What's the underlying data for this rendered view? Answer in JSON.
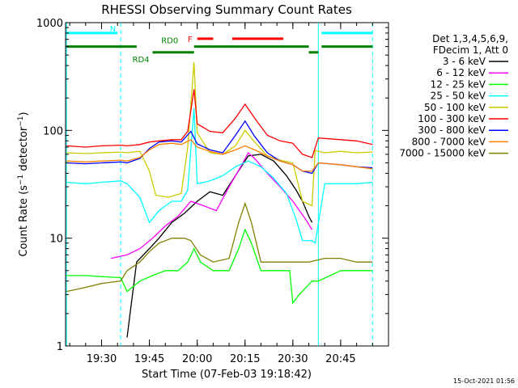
{
  "chart_data": {
    "type": "line",
    "title": "RHESSI Observing Summary Count Rates",
    "xlabel": "Start Time (07-Feb-03 19:18:42)",
    "ylabel": "Count Rate (s⁻¹ detector⁻¹)",
    "ylabel_main": "Count Rate (s",
    "ylabel_sup1": "−1",
    "ylabel_mid": " detector",
    "ylabel_sup2": "−1",
    "ylabel_end": ")",
    "y_scale": "log",
    "ylim": [
      1,
      1000
    ],
    "xlim": [
      "19:18:42",
      "21:00:00"
    ],
    "x_ticks": [
      "19:30",
      "19:45",
      "20:00",
      "20:15",
      "20:30",
      "20:45"
    ],
    "y_ticks": [
      "1",
      "10",
      "100",
      "1000"
    ],
    "legend_header": [
      "Det 1,3,4,5,6,9,",
      "FDecim 1, Att 0"
    ],
    "legend_placement": "right",
    "timestamp": "15-Oct-2021 01:56",
    "series": [
      {
        "name": "3 - 6 keV",
        "color": "#000000",
        "points": [
          [
            "19:38",
            1.2
          ],
          [
            "19:41",
            6
          ],
          [
            "19:45",
            8
          ],
          [
            "19:48",
            10
          ],
          [
            "19:52",
            14
          ],
          [
            "19:56",
            17
          ],
          [
            "20:00",
            22
          ],
          [
            "20:04",
            27
          ],
          [
            "20:08",
            25
          ],
          [
            "20:12",
            38
          ],
          [
            "20:16",
            58
          ],
          [
            "20:20",
            60
          ],
          [
            "20:24",
            52
          ],
          [
            "20:28",
            38
          ],
          [
            "20:31",
            28
          ],
          [
            "20:33",
            22
          ],
          [
            "20:35",
            16
          ],
          [
            "20:36",
            14
          ]
        ]
      },
      {
        "name": "6 - 12 keV",
        "color": "#ff00ff",
        "points": [
          [
            "19:33",
            6.5
          ],
          [
            "19:38",
            7
          ],
          [
            "19:42",
            8
          ],
          [
            "19:46",
            10
          ],
          [
            "19:50",
            13
          ],
          [
            "19:54",
            16
          ],
          [
            "19:58",
            22
          ],
          [
            "20:02",
            20
          ],
          [
            "20:06",
            18
          ],
          [
            "20:10",
            30
          ],
          [
            "20:14",
            48
          ],
          [
            "20:16",
            62
          ],
          [
            "20:18",
            55
          ],
          [
            "20:22",
            40
          ],
          [
            "20:26",
            30
          ],
          [
            "20:30",
            22
          ],
          [
            "20:34",
            15
          ],
          [
            "20:36",
            12
          ]
        ]
      },
      {
        "name": "12 - 25 keV",
        "color": "#00ff00",
        "points": [
          [
            "19:19",
            4.5
          ],
          [
            "19:25",
            4.5
          ],
          [
            "19:30",
            4.4
          ],
          [
            "19:36",
            4.3
          ],
          [
            "19:38",
            3.2
          ],
          [
            "19:42",
            4
          ],
          [
            "19:46",
            4.5
          ],
          [
            "19:50",
            5
          ],
          [
            "19:54",
            5
          ],
          [
            "19:57",
            6
          ],
          [
            "19:59",
            8
          ],
          [
            "20:01",
            6
          ],
          [
            "20:05",
            5
          ],
          [
            "20:10",
            5
          ],
          [
            "20:13",
            8
          ],
          [
            "20:15",
            12
          ],
          [
            "20:17",
            9
          ],
          [
            "20:20",
            5
          ],
          [
            "20:25",
            5
          ],
          [
            "20:29",
            5
          ],
          [
            "20:30",
            2.5
          ],
          [
            "20:32",
            3
          ],
          [
            "20:36",
            4
          ],
          [
            "20:38",
            4
          ],
          [
            "20:45",
            5
          ],
          [
            "20:50",
            5
          ],
          [
            "20:55",
            5
          ]
        ]
      },
      {
        "name": "25 - 50 keV",
        "color": "#00ffff",
        "points": [
          [
            "19:19",
            33
          ],
          [
            "19:25",
            32
          ],
          [
            "19:30",
            33
          ],
          [
            "19:36",
            34
          ],
          [
            "19:38",
            32
          ],
          [
            "19:42",
            24
          ],
          [
            "19:45",
            14
          ],
          [
            "19:48",
            18
          ],
          [
            "19:52",
            22
          ],
          [
            "19:55",
            22
          ],
          [
            "19:57",
            28
          ],
          [
            "19:59",
            160
          ],
          [
            "20:00",
            32
          ],
          [
            "20:04",
            34
          ],
          [
            "20:08",
            38
          ],
          [
            "20:12",
            46
          ],
          [
            "20:16",
            52
          ],
          [
            "20:20",
            46
          ],
          [
            "20:24",
            36
          ],
          [
            "20:28",
            26
          ],
          [
            "20:31",
            15
          ],
          [
            "20:33",
            9.5
          ],
          [
            "20:36",
            9.5
          ],
          [
            "20:37",
            9
          ],
          [
            "20:40",
            32
          ],
          [
            "20:45",
            32
          ],
          [
            "20:50",
            32
          ],
          [
            "20:55",
            33
          ]
        ]
      },
      {
        "name": "50 - 100 keV",
        "color": "#cccc00",
        "points": [
          [
            "19:19",
            62
          ],
          [
            "19:25",
            61
          ],
          [
            "19:30",
            62
          ],
          [
            "19:36",
            63
          ],
          [
            "19:38",
            62
          ],
          [
            "19:42",
            64
          ],
          [
            "19:45",
            42
          ],
          [
            "19:47",
            25
          ],
          [
            "19:51",
            24
          ],
          [
            "19:55",
            26
          ],
          [
            "19:57",
            70
          ],
          [
            "19:59",
            430
          ],
          [
            "20:00",
            95
          ],
          [
            "20:04",
            62
          ],
          [
            "20:08",
            60
          ],
          [
            "20:12",
            72
          ],
          [
            "20:15",
            100
          ],
          [
            "20:18",
            78
          ],
          [
            "20:22",
            58
          ],
          [
            "20:26",
            53
          ],
          [
            "20:30",
            50
          ],
          [
            "20:33",
            22
          ],
          [
            "20:36",
            20
          ],
          [
            "20:37",
            65
          ],
          [
            "20:40",
            62
          ],
          [
            "20:45",
            64
          ],
          [
            "20:50",
            62
          ],
          [
            "20:55",
            63
          ]
        ]
      },
      {
        "name": "100 - 300 keV",
        "color": "#ff0000",
        "points": [
          [
            "19:19",
            72
          ],
          [
            "19:25",
            70
          ],
          [
            "19:30",
            72
          ],
          [
            "19:36",
            73
          ],
          [
            "19:38",
            72
          ],
          [
            "19:42",
            74
          ],
          [
            "19:45",
            78
          ],
          [
            "19:48",
            80
          ],
          [
            "19:52",
            82
          ],
          [
            "19:55",
            82
          ],
          [
            "19:57",
            98
          ],
          [
            "19:59",
            240
          ],
          [
            "20:00",
            115
          ],
          [
            "20:04",
            98
          ],
          [
            "20:08",
            95
          ],
          [
            "20:12",
            130
          ],
          [
            "20:15",
            175
          ],
          [
            "20:18",
            130
          ],
          [
            "20:22",
            90
          ],
          [
            "20:26",
            80
          ],
          [
            "20:30",
            76
          ],
          [
            "20:33",
            60
          ],
          [
            "20:36",
            56
          ],
          [
            "20:38",
            85
          ],
          [
            "20:45",
            82
          ],
          [
            "20:50",
            80
          ],
          [
            "20:55",
            74
          ]
        ]
      },
      {
        "name": "300 - 800 keV",
        "color": "#0000ff",
        "points": [
          [
            "19:19",
            50
          ],
          [
            "19:25",
            49
          ],
          [
            "19:30",
            50
          ],
          [
            "19:36",
            51
          ],
          [
            "19:38",
            50
          ],
          [
            "19:42",
            55
          ],
          [
            "19:45",
            68
          ],
          [
            "19:48",
            78
          ],
          [
            "19:52",
            80
          ],
          [
            "19:55",
            78
          ],
          [
            "19:58",
            98
          ],
          [
            "20:00",
            75
          ],
          [
            "20:04",
            66
          ],
          [
            "20:08",
            62
          ],
          [
            "20:12",
            90
          ],
          [
            "20:15",
            122
          ],
          [
            "20:18",
            88
          ],
          [
            "20:22",
            62
          ],
          [
            "20:26",
            52
          ],
          [
            "20:30",
            48
          ],
          [
            "20:33",
            42
          ],
          [
            "20:36",
            40
          ],
          [
            "20:38",
            50
          ],
          [
            "20:45",
            48
          ],
          [
            "20:50",
            46
          ],
          [
            "20:55",
            45
          ]
        ]
      },
      {
        "name": "800 - 7000 keV",
        "color": "#ff8000",
        "points": [
          [
            "19:19",
            52
          ],
          [
            "19:25",
            51
          ],
          [
            "19:30",
            52
          ],
          [
            "19:36",
            53
          ],
          [
            "19:38",
            52
          ],
          [
            "19:42",
            56
          ],
          [
            "19:45",
            66
          ],
          [
            "19:48",
            74
          ],
          [
            "19:52",
            76
          ],
          [
            "19:55",
            74
          ],
          [
            "19:58",
            82
          ],
          [
            "20:00",
            70
          ],
          [
            "20:04",
            64
          ],
          [
            "20:08",
            60
          ],
          [
            "20:12",
            66
          ],
          [
            "20:15",
            72
          ],
          [
            "20:18",
            66
          ],
          [
            "20:22",
            58
          ],
          [
            "20:26",
            52
          ],
          [
            "20:30",
            48
          ],
          [
            "20:33",
            42
          ],
          [
            "20:36",
            42
          ],
          [
            "20:38",
            50
          ],
          [
            "20:45",
            48
          ],
          [
            "20:50",
            46
          ],
          [
            "20:55",
            44
          ]
        ]
      },
      {
        "name": "7000 - 15000 keV",
        "color": "#808000",
        "points": [
          [
            "19:19",
            3.2
          ],
          [
            "19:25",
            3.5
          ],
          [
            "19:30",
            3.8
          ],
          [
            "19:36",
            4
          ],
          [
            "19:38",
            5
          ],
          [
            "19:42",
            6
          ],
          [
            "19:45",
            7.5
          ],
          [
            "19:48",
            9
          ],
          [
            "19:52",
            10
          ],
          [
            "19:56",
            10
          ],
          [
            "19:58",
            9.5
          ],
          [
            "20:01",
            7
          ],
          [
            "20:05",
            6
          ],
          [
            "20:10",
            6.5
          ],
          [
            "20:13",
            14
          ],
          [
            "20:15",
            21
          ],
          [
            "20:17",
            14
          ],
          [
            "20:20",
            6
          ],
          [
            "20:25",
            6
          ],
          [
            "20:30",
            6
          ],
          [
            "20:35",
            6
          ],
          [
            "20:40",
            6.5
          ],
          [
            "20:45",
            6.5
          ],
          [
            "20:50",
            6
          ],
          [
            "20:55",
            6
          ]
        ]
      }
    ],
    "status_bars": [
      {
        "label": "N",
        "color": "#00ffff",
        "y": 800,
        "segments": [
          [
            "19:19",
            "19:35"
          ],
          [
            "20:39",
            "20:55"
          ]
        ]
      },
      {
        "label": "RD0",
        "color": "#008000",
        "y": 600,
        "segments": [
          [
            "19:19",
            "19:41"
          ],
          [
            "19:59",
            "20:35"
          ],
          [
            "20:39",
            "20:55"
          ]
        ]
      },
      {
        "label": "RD4",
        "color": "#008000",
        "y": 530,
        "segments": [
          [
            "19:46",
            "19:59"
          ],
          [
            "20:35",
            "20:38"
          ]
        ]
      },
      {
        "label": "F",
        "color": "#ff0000",
        "y": 710,
        "segments": [
          [
            "20:00",
            "20:05"
          ],
          [
            "20:11",
            "20:27"
          ]
        ]
      }
    ],
    "vertical_markers": [
      {
        "color": "#00ffff",
        "style": "solid",
        "times": [
          "19:19",
          "20:38"
        ]
      },
      {
        "color": "#00ffff",
        "style": "dashed",
        "times": [
          "19:36",
          "20:55"
        ]
      }
    ]
  }
}
